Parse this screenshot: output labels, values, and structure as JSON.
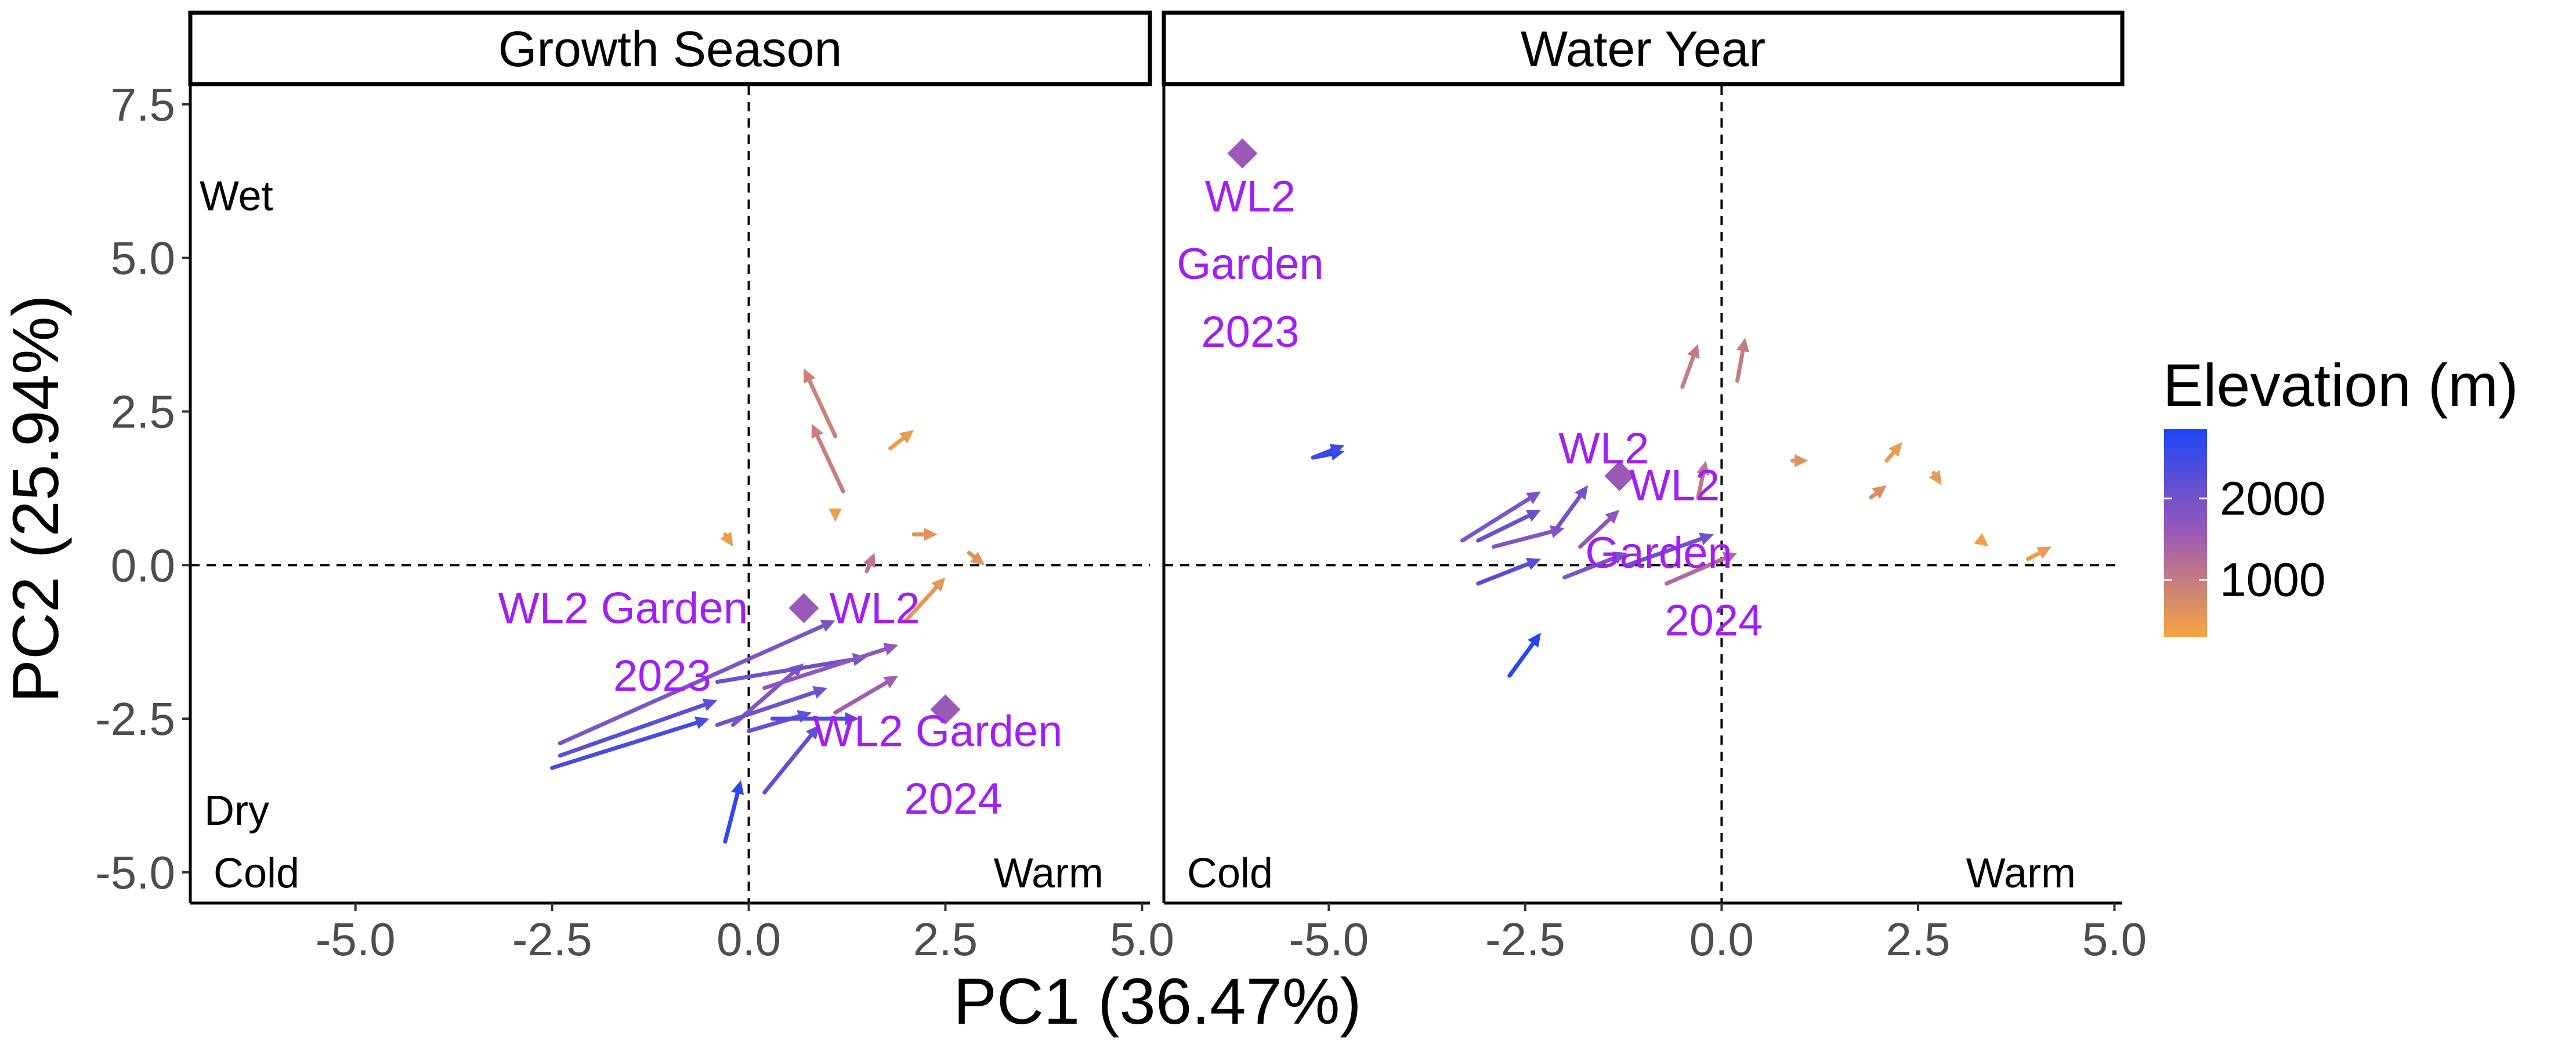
{
  "chart_data": {
    "type": "scatter",
    "subtype": "faceted arrow biplot with point markers",
    "facets": [
      {
        "title": "Growth Season",
        "corner_labels": {
          "top_left": "Wet",
          "bottom_left_upper": "Dry",
          "bottom_left": "Cold",
          "bottom_right": "Warm"
        },
        "points": [
          {
            "x": 0.7,
            "y": -0.7
          },
          {
            "x": 2.5,
            "y": -2.35
          }
        ],
        "point_labels": [
          {
            "text": "WL2",
            "x": 1.6,
            "y": -0.7
          },
          {
            "text": "WL2 Garden",
            "x": -1.6,
            "y": -0.7
          },
          {
            "text": "2023",
            "x": -1.1,
            "y": -1.8
          },
          {
            "text": "WL2 Garden",
            "x": 2.4,
            "y": -2.7
          },
          {
            "text": "2024",
            "x": 2.6,
            "y": -3.8
          }
        ],
        "arrows": [
          {
            "x0": 1.1,
            "y0": 2.1,
            "x1": 0.7,
            "y1": 3.2,
            "elevation": 900
          },
          {
            "x0": 1.2,
            "y0": 1.2,
            "x1": 0.8,
            "y1": 2.3,
            "elevation": 950
          },
          {
            "x0": 1.8,
            "y0": 1.9,
            "x1": 2.1,
            "y1": 2.2,
            "elevation": 450
          },
          {
            "x0": 1.1,
            "y0": 0.8,
            "x1": 1.1,
            "y1": 0.7,
            "elevation": 450
          },
          {
            "x0": 2.1,
            "y0": 0.5,
            "x1": 2.4,
            "y1": 0.5,
            "elevation": 600
          },
          {
            "x0": 2.8,
            "y0": 0.2,
            "x1": 3.0,
            "y1": 0.0,
            "elevation": 600
          },
          {
            "x0": -0.3,
            "y0": 0.5,
            "x1": -0.2,
            "y1": 0.3,
            "elevation": 450
          },
          {
            "x0": 1.5,
            "y0": -0.1,
            "x1": 1.6,
            "y1": 0.2,
            "elevation": 1100
          },
          {
            "x0": 2.0,
            "y0": -0.9,
            "x1": 2.5,
            "y1": -0.2,
            "elevation": 550
          },
          {
            "x0": -2.4,
            "y0": -2.9,
            "x1": 1.1,
            "y1": -0.9,
            "elevation": 1900
          },
          {
            "x0": -2.5,
            "y0": -3.3,
            "x1": -0.5,
            "y1": -2.5,
            "elevation": 2450
          },
          {
            "x0": -2.4,
            "y0": -3.1,
            "x1": -0.4,
            "y1": -2.2,
            "elevation": 2250
          },
          {
            "x0": -0.2,
            "y0": -2.6,
            "x1": 0.7,
            "y1": -1.6,
            "elevation": 1850
          },
          {
            "x0": -0.4,
            "y0": -1.9,
            "x1": 1.5,
            "y1": -1.5,
            "elevation": 2050
          },
          {
            "x0": 0.2,
            "y0": -2.0,
            "x1": 1.9,
            "y1": -1.3,
            "elevation": 1700
          },
          {
            "x0": 1.1,
            "y0": -2.4,
            "x1": 1.9,
            "y1": -1.8,
            "elevation": 1500
          },
          {
            "x0": -0.4,
            "y0": -2.6,
            "x1": 1.0,
            "y1": -2.0,
            "elevation": 2000
          },
          {
            "x0": 0.0,
            "y0": -2.7,
            "x1": 0.8,
            "y1": -2.4,
            "elevation": 2150
          },
          {
            "x0": 0.3,
            "y0": -2.5,
            "x1": 1.4,
            "y1": -2.5,
            "elevation": 2350
          },
          {
            "x0": 0.2,
            "y0": -3.7,
            "x1": 0.9,
            "y1": -2.6,
            "elevation": 2200
          },
          {
            "x0": -0.3,
            "y0": -4.5,
            "x1": -0.1,
            "y1": -3.5,
            "elevation": 2700
          }
        ]
      },
      {
        "title": "Water Year",
        "corner_labels": {
          "bottom_left": "Cold",
          "bottom_right": "Warm"
        },
        "points": [
          {
            "x": -6.1,
            "y": 6.7
          },
          {
            "x": -1.3,
            "y": 1.45
          }
        ],
        "point_labels": [
          {
            "text": "WL2",
            "x": -6.0,
            "y": 6.0
          },
          {
            "text": "Garden",
            "x": -6.0,
            "y": 4.9
          },
          {
            "text": "2023",
            "x": -6.0,
            "y": 3.8
          },
          {
            "text": "WL2",
            "x": -1.5,
            "y": 1.9
          },
          {
            "text": "WL2",
            "x": -0.6,
            "y": 1.3
          },
          {
            "text": "Garden",
            "x": -0.8,
            "y": 0.2
          },
          {
            "text": "2024",
            "x": -0.1,
            "y": -0.9
          }
        ],
        "arrows": [
          {
            "x0": -5.2,
            "y0": 1.75,
            "x1": -4.8,
            "y1": 1.85,
            "elevation": 2700
          },
          {
            "x0": -5.2,
            "y0": 1.75,
            "x1": -4.8,
            "y1": 1.95,
            "elevation": 2500
          },
          {
            "x0": -0.5,
            "y0": 2.9,
            "x1": -0.3,
            "y1": 3.6,
            "elevation": 1000
          },
          {
            "x0": 0.2,
            "y0": 3.0,
            "x1": 0.3,
            "y1": 3.7,
            "elevation": 1000
          },
          {
            "x0": -0.3,
            "y0": 1.1,
            "x1": -0.2,
            "y1": 1.7,
            "elevation": 1100
          },
          {
            "x0": 0.9,
            "y0": 1.7,
            "x1": 1.1,
            "y1": 1.7,
            "elevation": 600
          },
          {
            "x0": 2.1,
            "y0": 1.7,
            "x1": 2.3,
            "y1": 2.0,
            "elevation": 450
          },
          {
            "x0": 1.9,
            "y0": 1.1,
            "x1": 2.1,
            "y1": 1.3,
            "elevation": 700
          },
          {
            "x0": 2.7,
            "y0": 1.5,
            "x1": 2.8,
            "y1": 1.3,
            "elevation": 500
          },
          {
            "x0": 3.3,
            "y0": 0.4,
            "x1": 3.4,
            "y1": 0.3,
            "elevation": 400
          },
          {
            "x0": 3.9,
            "y0": 0.1,
            "x1": 4.2,
            "y1": 0.3,
            "elevation": 450
          },
          {
            "x0": -3.3,
            "y0": 0.4,
            "x1": -2.3,
            "y1": 1.2,
            "elevation": 1900
          },
          {
            "x0": -3.1,
            "y0": 0.4,
            "x1": -2.3,
            "y1": 0.9,
            "elevation": 2100
          },
          {
            "x0": -2.9,
            "y0": 0.3,
            "x1": -2.0,
            "y1": 0.6,
            "elevation": 1850
          },
          {
            "x0": -3.1,
            "y0": -0.3,
            "x1": -2.3,
            "y1": 0.1,
            "elevation": 2300
          },
          {
            "x0": -2.1,
            "y0": 0.6,
            "x1": -1.7,
            "y1": 1.3,
            "elevation": 2000
          },
          {
            "x0": -1.8,
            "y0": 0.3,
            "x1": -1.3,
            "y1": 0.9,
            "elevation": 1700
          },
          {
            "x0": -2.0,
            "y0": -0.2,
            "x1": -1.2,
            "y1": 0.2,
            "elevation": 1900
          },
          {
            "x0": -1.2,
            "y0": 0.0,
            "x1": -0.1,
            "y1": 0.5,
            "elevation": 2050
          },
          {
            "x0": -0.7,
            "y0": -0.3,
            "x1": 0.2,
            "y1": 0.2,
            "elevation": 1300
          },
          {
            "x0": -2.7,
            "y0": -1.8,
            "x1": -2.3,
            "y1": -1.1,
            "elevation": 2800
          }
        ]
      }
    ],
    "xlabel": "PC1 (36.47%)",
    "ylabel": "PC2 (25.94%)",
    "xlim": [
      -7.1,
      5.1
    ],
    "ylim": [
      -5.5,
      7.8
    ],
    "x_ticks": [
      "-5.0",
      "-2.5",
      "0.0",
      "2.5",
      "5.0"
    ],
    "x_tick_values": [
      -5,
      -2.5,
      0,
      2.5,
      5
    ],
    "y_ticks": [
      "7.5",
      "5.0",
      "2.5",
      "0.0",
      "-2.5",
      "-5.0"
    ],
    "y_tick_values": [
      7.5,
      5,
      2.5,
      0,
      -2.5,
      -5
    ],
    "reference_lines": {
      "x": 0,
      "y": 0,
      "style": "dashed"
    },
    "grid": false,
    "legend": {
      "title": "Elevation (m)",
      "type": "colorbar",
      "ticks": [
        "2000",
        "1000"
      ],
      "tick_values": [
        2000,
        1000
      ],
      "range": [
        300,
        2850
      ],
      "placement": "right",
      "low_color": "#f5a641",
      "mid_color": "#9b59b6",
      "high_color": "#1f45f5"
    },
    "marker_color": "#9b59b6",
    "annotation_color": "#a020f0"
  }
}
